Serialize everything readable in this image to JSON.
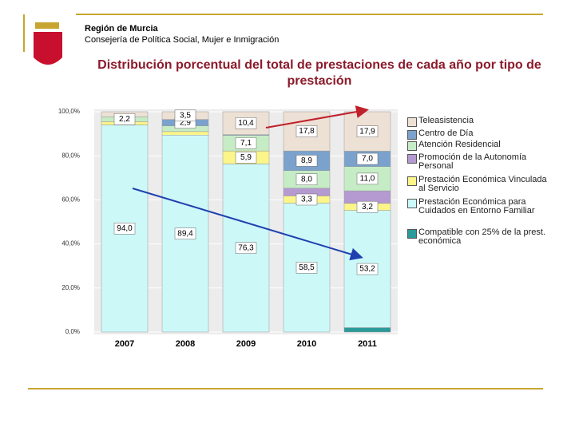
{
  "header": {
    "org": "Región de Murcia",
    "dept": "Consejería de Política Social, Mujer e Inmigración"
  },
  "chart_data": {
    "type": "stacked_bar",
    "title": "Distribución porcentual del total de prestaciones de cada año por tipo de prestación",
    "categories": [
      "2007",
      "2008",
      "2009",
      "2010",
      "2011"
    ],
    "ylim": [
      0,
      100
    ],
    "yticks": [
      {
        "value": 0,
        "label": "0,0%"
      },
      {
        "value": 20,
        "label": "20,0%"
      },
      {
        "value": 40,
        "label": "40,0%"
      },
      {
        "value": 60,
        "label": "60,0%"
      },
      {
        "value": 80,
        "label": "80,0%"
      },
      {
        "value": 100,
        "label": "100,0%"
      }
    ],
    "series": [
      {
        "name": "Compatible con 25% de la prest. económica",
        "color": "#2a9a9a",
        "values": [
          0,
          0,
          0,
          0,
          2.0
        ],
        "value_labels": [
          null,
          null,
          null,
          null,
          null
        ]
      },
      {
        "name": "Prestación Económica para Cuidados en Entorno Familiar",
        "color": "#ccf8f8",
        "values": [
          94.0,
          89.4,
          76.3,
          58.5,
          53.2
        ],
        "value_labels": [
          "94,0",
          "89,4",
          "76,3",
          "58,5",
          "53,2"
        ]
      },
      {
        "name": "Prestación Económica Vinculada al Servicio",
        "color": "#fbf58a",
        "values": [
          1.5,
          1.6,
          5.9,
          3.3,
          3.2
        ],
        "value_labels": [
          null,
          null,
          "5,9",
          "3,3",
          "3,2"
        ]
      },
      {
        "name": "Promoción de la Autonomía Personal",
        "color": "#b49ad0",
        "values": [
          0,
          0,
          0,
          3.5,
          5.7
        ],
        "value_labels": [
          null,
          null,
          null,
          null,
          null
        ]
      },
      {
        "name": "Atención Residencial",
        "color": "#c6ecc6",
        "values": [
          2.2,
          2.6,
          7.1,
          8.0,
          11.0
        ],
        "value_labels": [
          "2,2",
          null,
          "7,1",
          "8,0",
          "11,0"
        ]
      },
      {
        "name": "Centro de Día",
        "color": "#7aa2cc",
        "values": [
          0,
          2.9,
          0.3,
          8.9,
          7.0
        ],
        "value_labels": [
          null,
          "2,9",
          null,
          "8,9",
          "7,0"
        ]
      },
      {
        "name": "Teleasistencia",
        "color": "#ede0d5",
        "values": [
          2.3,
          3.5,
          10.4,
          17.8,
          17.9
        ],
        "value_labels": [
          null,
          "3,5",
          "10,4",
          "17,8",
          "17,9"
        ]
      }
    ]
  }
}
